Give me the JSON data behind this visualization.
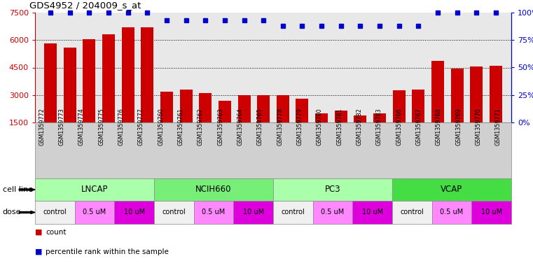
{
  "title": "GDS4952 / 204009_s_at",
  "samples": [
    "GSM1359772",
    "GSM1359773",
    "GSM1359774",
    "GSM1359775",
    "GSM1359776",
    "GSM1359777",
    "GSM1359760",
    "GSM1359761",
    "GSM1359762",
    "GSM1359763",
    "GSM1359764",
    "GSM1359765",
    "GSM1359778",
    "GSM1359779",
    "GSM1359780",
    "GSM1359781",
    "GSM1359782",
    "GSM1359783",
    "GSM1359766",
    "GSM1359767",
    "GSM1359768",
    "GSM1359769",
    "GSM1359770",
    "GSM1359771"
  ],
  "counts": [
    5800,
    5600,
    6050,
    6300,
    6700,
    6700,
    3200,
    3300,
    3100,
    2700,
    3000,
    3000,
    3000,
    2800,
    2000,
    2150,
    1900,
    2000,
    3250,
    3300,
    4850,
    4450,
    4550,
    4600
  ],
  "percentile_ranks": [
    100,
    100,
    100,
    100,
    100,
    100,
    93,
    93,
    93,
    93,
    93,
    93,
    88,
    88,
    88,
    88,
    88,
    88,
    88,
    88,
    100,
    100,
    100,
    100
  ],
  "bar_color": "#CC0000",
  "dot_color": "#0000CC",
  "ylim_left": [
    1500,
    7500
  ],
  "ylim_right": [
    0,
    100
  ],
  "yticks_left": [
    1500,
    3000,
    4500,
    6000,
    7500
  ],
  "yticks_right": [
    0,
    25,
    50,
    75,
    100
  ],
  "cell_lines": [
    {
      "label": "LNCAP",
      "start": 0,
      "end": 6,
      "color": "#AAFFAA"
    },
    {
      "label": "NCIH660",
      "start": 6,
      "end": 12,
      "color": "#77EE77"
    },
    {
      "label": "PC3",
      "start": 12,
      "end": 18,
      "color": "#AAFFAA"
    },
    {
      "label": "VCAP",
      "start": 18,
      "end": 24,
      "color": "#44DD44"
    }
  ],
  "dose_groups": [
    {
      "label": "control",
      "start": 0,
      "end": 2,
      "color": "#F0F0F0"
    },
    {
      "label": "0.5 uM",
      "start": 2,
      "end": 4,
      "color": "#FF88FF"
    },
    {
      "label": "10 uM",
      "start": 4,
      "end": 6,
      "color": "#DD00DD"
    },
    {
      "label": "control",
      "start": 6,
      "end": 8,
      "color": "#F0F0F0"
    },
    {
      "label": "0.5 uM",
      "start": 8,
      "end": 10,
      "color": "#FF88FF"
    },
    {
      "label": "10 uM",
      "start": 10,
      "end": 12,
      "color": "#DD00DD"
    },
    {
      "label": "control",
      "start": 12,
      "end": 14,
      "color": "#F0F0F0"
    },
    {
      "label": "0.5 uM",
      "start": 14,
      "end": 16,
      "color": "#FF88FF"
    },
    {
      "label": "10 uM",
      "start": 16,
      "end": 18,
      "color": "#DD00DD"
    },
    {
      "label": "control",
      "start": 18,
      "end": 20,
      "color": "#F0F0F0"
    },
    {
      "label": "0.5 uM",
      "start": 20,
      "end": 22,
      "color": "#FF88FF"
    },
    {
      "label": "10 uM",
      "start": 22,
      "end": 24,
      "color": "#DD00DD"
    }
  ],
  "ax_bg_color": "#E8E8E8",
  "fig_bg_color": "#FFFFFF",
  "label_bg_color": "#D0D0D0"
}
